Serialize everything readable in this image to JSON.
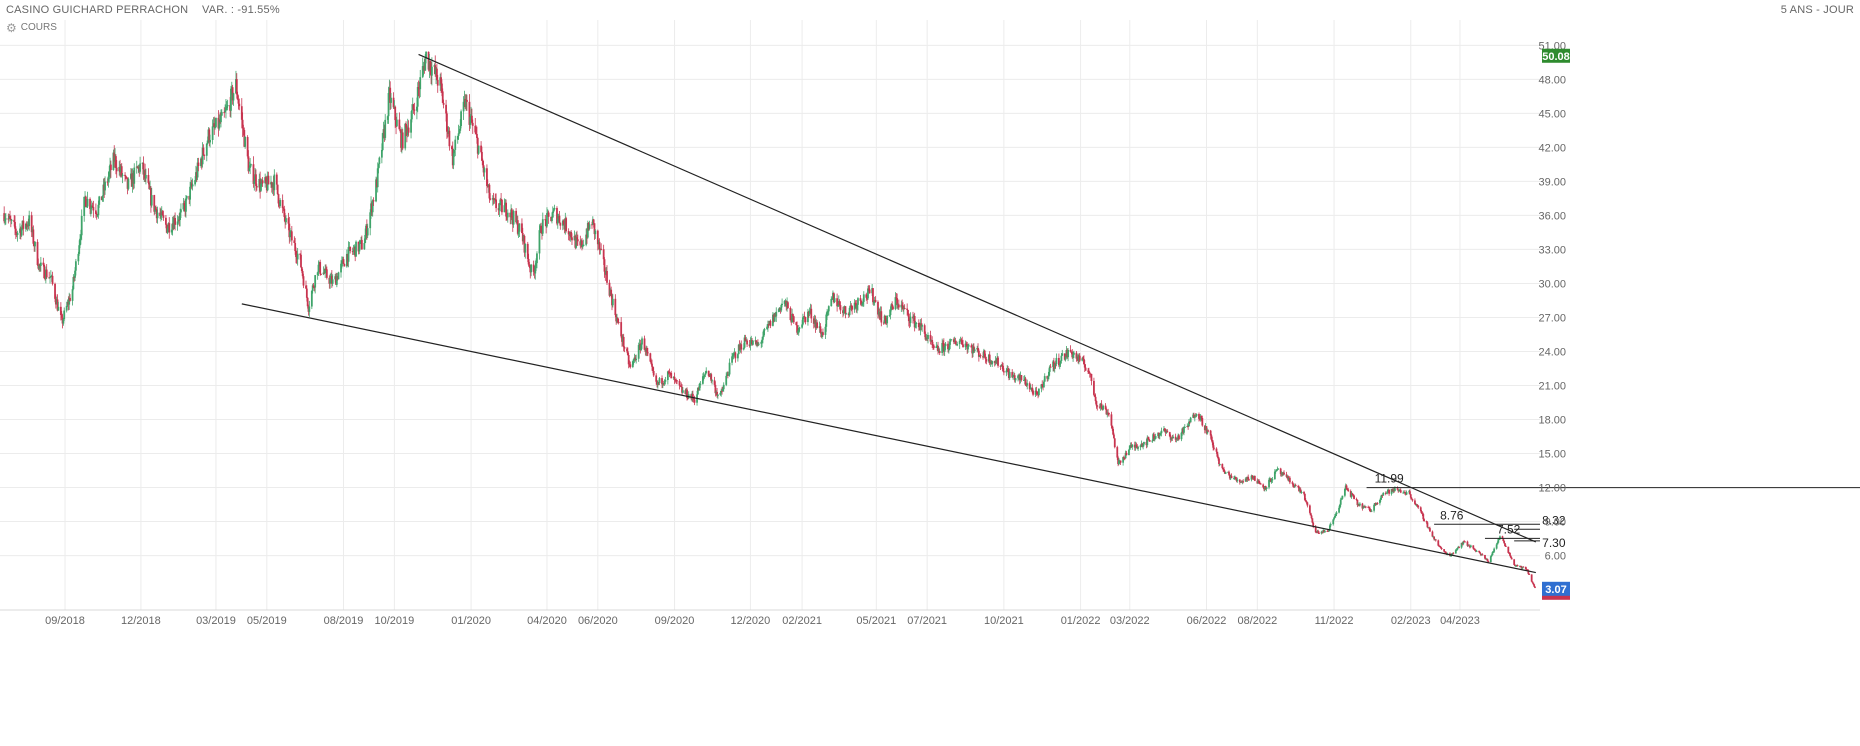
{
  "header": {
    "title": "CASINO GUICHARD PERRACHON",
    "variation": "VAR. : -91.55%",
    "period": "5 ANS - JOUR"
  },
  "legend": {
    "label": "COURS",
    "icon": "gear-icon"
  },
  "colors": {
    "up": "#3fa46a",
    "down": "#c8344f",
    "grid": "#ececec",
    "trendline": "#222222",
    "high_badge": "#2e8b2e",
    "last_badge": "#2f6fd1",
    "low_badge": "#c8344f"
  },
  "chart_data": {
    "type": "candlestick",
    "title": "",
    "xlabel": "",
    "ylabel": "",
    "ylim": [
      1.2,
      52
    ],
    "y_ticks": [
      "51.00",
      "48.00",
      "45.00",
      "42.00",
      "39.00",
      "36.00",
      "33.00",
      "30.00",
      "27.00",
      "24.00",
      "21.00",
      "18.00",
      "15.00",
      "12.00",
      "9.00",
      "6.00"
    ],
    "x_ticks": [
      "09/2018",
      "12/2018",
      "03/2019",
      "05/2019",
      "08/2019",
      "10/2019",
      "01/2020",
      "04/2020",
      "06/2020",
      "09/2020",
      "12/2020",
      "02/2021",
      "05/2021",
      "07/2021",
      "10/2021",
      "01/2022",
      "03/2022",
      "06/2022",
      "08/2022",
      "11/2022",
      "02/2023",
      "04/2023"
    ],
    "grid": true,
    "price_path": [
      [
        "2018-06-20",
        36.2
      ],
      [
        "2018-07-05",
        34.5
      ],
      [
        "2018-07-20",
        35.5
      ],
      [
        "2018-08-01",
        31.5
      ],
      [
        "2018-08-15",
        30.5
      ],
      [
        "2018-08-28",
        26.5
      ],
      [
        "2018-09-10",
        29.5
      ],
      [
        "2018-09-25",
        37.5
      ],
      [
        "2018-10-10",
        36.5
      ],
      [
        "2018-10-30",
        41.0
      ],
      [
        "2018-11-15",
        38.5
      ],
      [
        "2018-12-01",
        40.5
      ],
      [
        "2018-12-15",
        37.0
      ],
      [
        "2019-01-01",
        35.0
      ],
      [
        "2019-01-20",
        36.2
      ],
      [
        "2019-02-05",
        39.5
      ],
      [
        "2019-02-20",
        43.0
      ],
      [
        "2019-03-10",
        44.5
      ],
      [
        "2019-03-25",
        47.5
      ],
      [
        "2019-04-10",
        40.0
      ],
      [
        "2019-04-25",
        38.5
      ],
      [
        "2019-05-10",
        39.0
      ],
      [
        "2019-05-25",
        35.0
      ],
      [
        "2019-06-10",
        32.0
      ],
      [
        "2019-06-20",
        28.0
      ],
      [
        "2019-07-01",
        31.5
      ],
      [
        "2019-07-20",
        30.0
      ],
      [
        "2019-08-05",
        32.5
      ],
      [
        "2019-08-25",
        33.5
      ],
      [
        "2019-09-10",
        39.0
      ],
      [
        "2019-09-25",
        46.5
      ],
      [
        "2019-10-10",
        42.5
      ],
      [
        "2019-10-25",
        45.5
      ],
      [
        "2019-11-08",
        50.1
      ],
      [
        "2019-11-25",
        47.5
      ],
      [
        "2019-12-10",
        41.0
      ],
      [
        "2019-12-25",
        46.0
      ],
      [
        "2020-01-10",
        42.0
      ],
      [
        "2020-01-25",
        37.0
      ],
      [
        "2020-02-15",
        36.5
      ],
      [
        "2020-03-01",
        34.5
      ],
      [
        "2020-03-15",
        30.5
      ],
      [
        "2020-03-25",
        35.0
      ],
      [
        "2020-04-10",
        36.2
      ],
      [
        "2020-04-25",
        35.0
      ],
      [
        "2020-05-10",
        33.0
      ],
      [
        "2020-05-25",
        35.5
      ],
      [
        "2020-06-10",
        31.0
      ],
      [
        "2020-06-25",
        26.5
      ],
      [
        "2020-07-10",
        22.5
      ],
      [
        "2020-07-25",
        25.0
      ],
      [
        "2020-08-10",
        21.0
      ],
      [
        "2020-08-25",
        22.0
      ],
      [
        "2020-09-10",
        20.5
      ],
      [
        "2020-09-25",
        19.8
      ],
      [
        "2020-10-10",
        22.5
      ],
      [
        "2020-10-25",
        19.8
      ],
      [
        "2020-11-10",
        23.5
      ],
      [
        "2020-11-25",
        25.0
      ],
      [
        "2020-12-10",
        24.5
      ],
      [
        "2020-12-25",
        26.5
      ],
      [
        "2021-01-10",
        28.5
      ],
      [
        "2021-01-25",
        26.0
      ],
      [
        "2021-02-10",
        27.5
      ],
      [
        "2021-02-25",
        25.5
      ],
      [
        "2021-03-10",
        28.8
      ],
      [
        "2021-03-25",
        27.5
      ],
      [
        "2021-04-10",
        28.5
      ],
      [
        "2021-04-25",
        29.2
      ],
      [
        "2021-05-10",
        26.5
      ],
      [
        "2021-05-25",
        28.5
      ],
      [
        "2021-06-10",
        27.0
      ],
      [
        "2021-06-25",
        26.0
      ],
      [
        "2021-07-10",
        24.0
      ],
      [
        "2021-07-25",
        24.5
      ],
      [
        "2021-08-10",
        25.0
      ],
      [
        "2021-08-25",
        24.2
      ],
      [
        "2021-09-10",
        23.5
      ],
      [
        "2021-09-25",
        23.0
      ],
      [
        "2021-10-10",
        21.8
      ],
      [
        "2021-10-25",
        21.5
      ],
      [
        "2021-11-10",
        20.0
      ],
      [
        "2021-11-25",
        22.5
      ],
      [
        "2021-12-10",
        23.5
      ],
      [
        "2021-12-20",
        24.0
      ],
      [
        "2022-01-10",
        22.5
      ],
      [
        "2022-01-20",
        19.5
      ],
      [
        "2022-02-05",
        18.5
      ],
      [
        "2022-02-15",
        14.0
      ],
      [
        "2022-03-01",
        15.5
      ],
      [
        "2022-03-20",
        16.0
      ],
      [
        "2022-04-10",
        17.0
      ],
      [
        "2022-04-25",
        16.2
      ],
      [
        "2022-05-10",
        17.5
      ],
      [
        "2022-05-20",
        18.8
      ],
      [
        "2022-06-05",
        16.5
      ],
      [
        "2022-06-20",
        13.5
      ],
      [
        "2022-07-10",
        12.5
      ],
      [
        "2022-07-25",
        13.0
      ],
      [
        "2022-08-10",
        12.0
      ],
      [
        "2022-08-25",
        13.5
      ],
      [
        "2022-09-10",
        12.5
      ],
      [
        "2022-09-25",
        11.5
      ],
      [
        "2022-10-10",
        8.0
      ],
      [
        "2022-10-25",
        8.2
      ],
      [
        "2022-11-05",
        10.0
      ],
      [
        "2022-11-15",
        12.0
      ],
      [
        "2022-11-30",
        10.5
      ],
      [
        "2022-12-15",
        10.0
      ],
      [
        "2022-12-30",
        11.5
      ],
      [
        "2023-01-15",
        11.8
      ],
      [
        "2023-01-30",
        11.5
      ],
      [
        "2023-02-15",
        9.5
      ],
      [
        "2023-03-01",
        7.5
      ],
      [
        "2023-03-10",
        6.5
      ],
      [
        "2023-03-20",
        6.0
      ],
      [
        "2023-04-05",
        7.2
      ],
      [
        "2023-04-20",
        6.5
      ],
      [
        "2023-05-05",
        5.5
      ],
      [
        "2023-05-20",
        7.8
      ],
      [
        "2023-06-05",
        5.2
      ],
      [
        "2023-06-20",
        4.8
      ],
      [
        "2023-06-30",
        3.1
      ]
    ],
    "price_high": 50.08,
    "last_price": 3.07,
    "trendlines": [
      {
        "from": [
          "2019-10-30",
          50.2
        ],
        "to": [
          "2023-07-01",
          7.2
        ]
      },
      {
        "from": [
          "2019-04-01",
          28.2
        ],
        "to": [
          "2023-07-01",
          4.5
        ]
      }
    ],
    "levels": [
      {
        "label": "11.99",
        "value": 11.99,
        "from": "2022-12-10"
      },
      {
        "label": "8.76",
        "value": 8.76,
        "from": "2023-03-01"
      },
      {
        "label": "7.52",
        "value": 7.52,
        "from": "2023-05-01"
      },
      {
        "label": "8.32",
        "value": 8.32,
        "from": "2023-06-05"
      },
      {
        "label": "7.30",
        "value": 7.3,
        "from": "2023-06-05"
      }
    ]
  }
}
